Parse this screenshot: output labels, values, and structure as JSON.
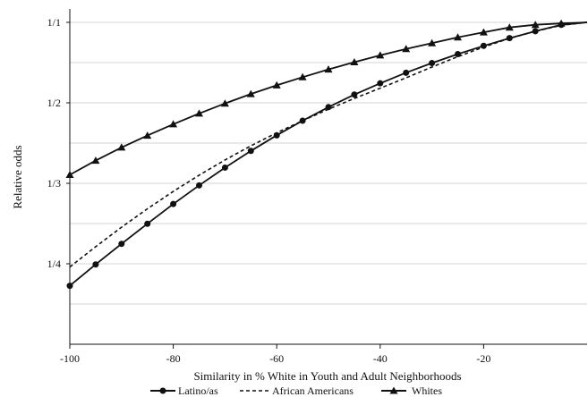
{
  "chart_data": {
    "type": "line",
    "title": "",
    "xlabel": "Similarity  in % White in Youth and Adult Neighborhoods",
    "ylabel": "Relative odds",
    "xlim": [
      -100,
      0
    ],
    "x_ticks": [
      -100,
      -80,
      -60,
      -40,
      -20
    ],
    "x_tick_labels": [
      "-100",
      "-80",
      "-60",
      "-40",
      "-20"
    ],
    "y_scale": "reciprocal",
    "ylim": [
      0.2,
      1.2
    ],
    "y_ticks": [
      1.0,
      0.5,
      0.3333,
      0.25
    ],
    "y_tick_labels": [
      "1/1",
      "1/2",
      "1/3",
      "1/4"
    ],
    "grid": true,
    "legend_position": "bottom",
    "series": [
      {
        "name": "Latino/as",
        "marker": "circle",
        "linestyle": "solid",
        "x": [
          -100,
          -95,
          -90,
          -85,
          -80,
          -75,
          -70,
          -65,
          -60,
          -55,
          -50,
          -45,
          -40,
          -35,
          -30,
          -25,
          -20,
          -15,
          -10,
          -5,
          0
        ],
        "y": [
          0.234,
          0.2495,
          0.2665,
          0.2855,
          0.307,
          0.3305,
          0.3565,
          0.385,
          0.416,
          0.45,
          0.487,
          0.527,
          0.569,
          0.615,
          0.664,
          0.717,
          0.774,
          0.836,
          0.901,
          0.97,
          1.0
        ]
      },
      {
        "name": "African Americans",
        "marker": "none",
        "linestyle": "dashed",
        "x": [
          -100,
          -95,
          -90,
          -85,
          -80,
          -75,
          -70,
          -65,
          -60,
          -55,
          -50,
          -45,
          -40,
          -35,
          -30,
          -25,
          -20,
          -15,
          -10,
          -5,
          0
        ],
        "y": [
          0.2475,
          0.264,
          0.282,
          0.3015,
          0.3225,
          0.345,
          0.369,
          0.3945,
          0.4215,
          0.45,
          0.481,
          0.514,
          0.55,
          0.592,
          0.643,
          0.701,
          0.765,
          0.834,
          0.9,
          0.965,
          1.0
        ]
      },
      {
        "name": "Whites",
        "marker": "triangle",
        "linestyle": "solid",
        "x": [
          -100,
          -95,
          -90,
          -85,
          -80,
          -75,
          -70,
          -65,
          -60,
          -55,
          -50,
          -45,
          -40,
          -35,
          -30,
          -25,
          -20,
          -15,
          -10,
          -5,
          0
        ],
        "y": [
          0.3455,
          0.368,
          0.3915,
          0.4155,
          0.4415,
          0.469,
          0.498,
          0.529,
          0.561,
          0.595,
          0.631,
          0.669,
          0.709,
          0.751,
          0.795,
          0.843,
          0.89,
          0.94,
          0.971,
          0.987,
          1.0
        ]
      }
    ]
  }
}
